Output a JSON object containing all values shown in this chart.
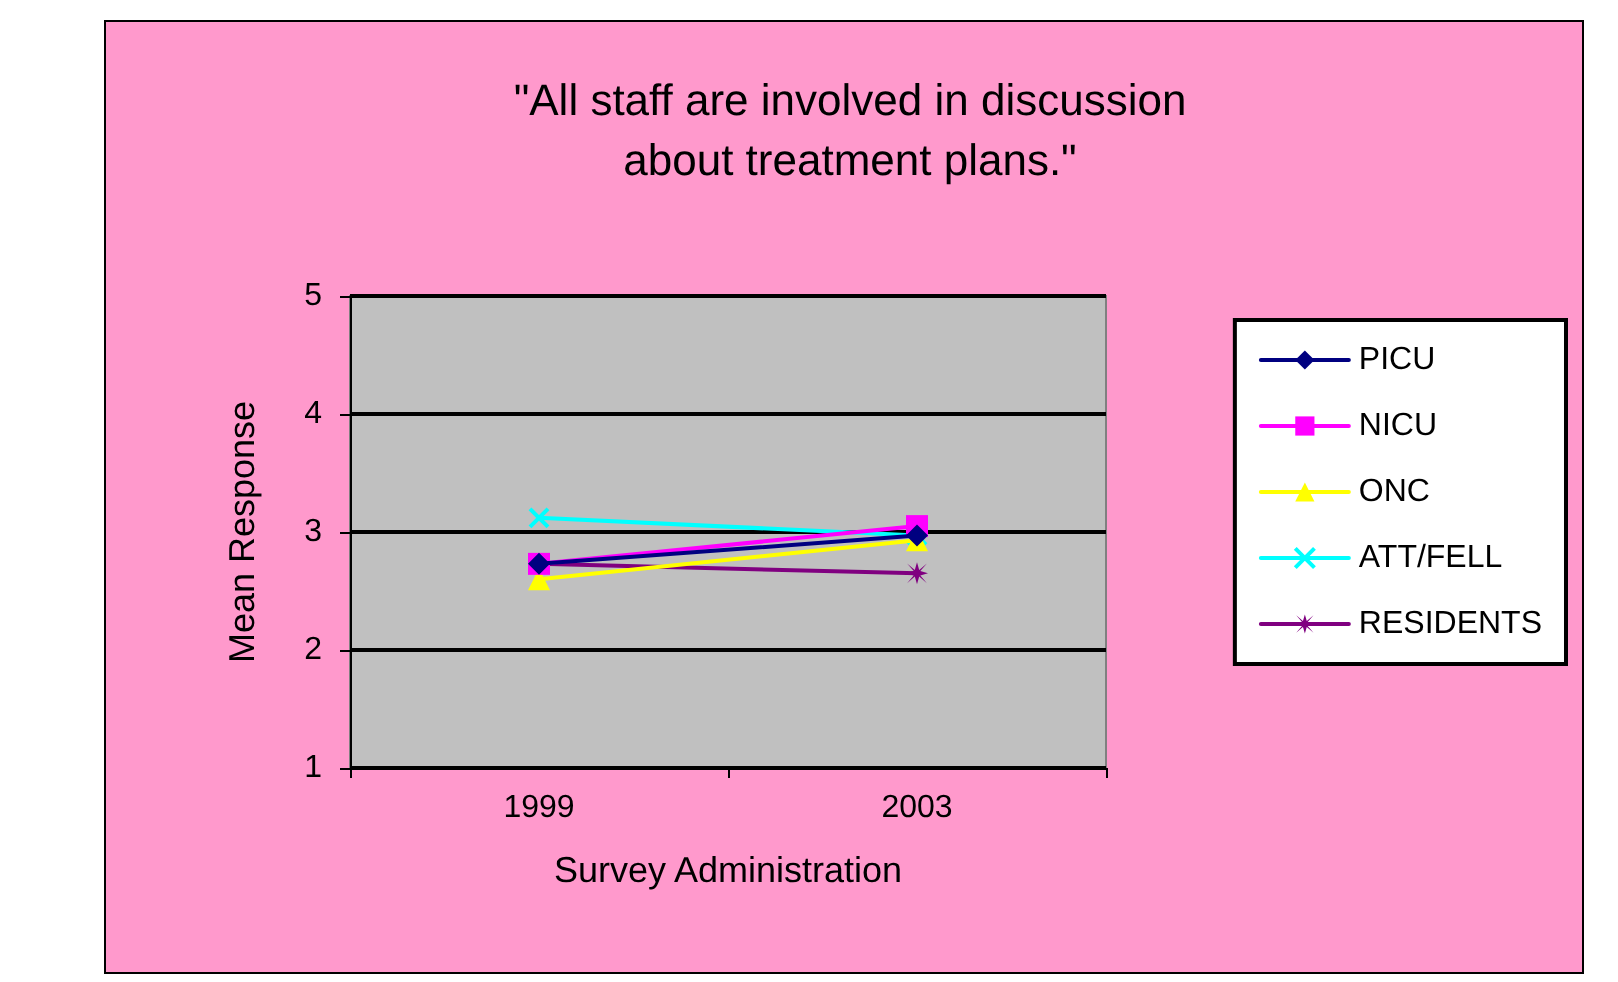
{
  "chart_data": {
    "type": "line",
    "title": "\"All staff are involved in discussion\nabout treatment plans.\"",
    "xlabel": "Survey Administration",
    "ylabel": "Mean Response",
    "categories": [
      "1999",
      "2003"
    ],
    "series": [
      {
        "name": "PICU",
        "color": "#000080",
        "marker": "diamond",
        "values": [
          2.73,
          2.97
        ]
      },
      {
        "name": "NICU",
        "color": "#ff00ff",
        "marker": "square",
        "values": [
          2.73,
          3.05
        ]
      },
      {
        "name": "ONC",
        "color": "#ffff00",
        "marker": "triangle",
        "values": [
          2.6,
          2.93
        ]
      },
      {
        "name": "ATT/FELL",
        "color": "#00ffff",
        "marker": "cross",
        "values": [
          3.12,
          2.97
        ]
      },
      {
        "name": "RESIDENTS",
        "color": "#800080",
        "marker": "star",
        "values": [
          2.73,
          2.65
        ]
      }
    ],
    "ylim": [
      1,
      5
    ],
    "yticks": [
      1,
      2,
      3,
      4,
      5
    ],
    "grid": "y",
    "legend": "right",
    "line_style": "solid"
  }
}
